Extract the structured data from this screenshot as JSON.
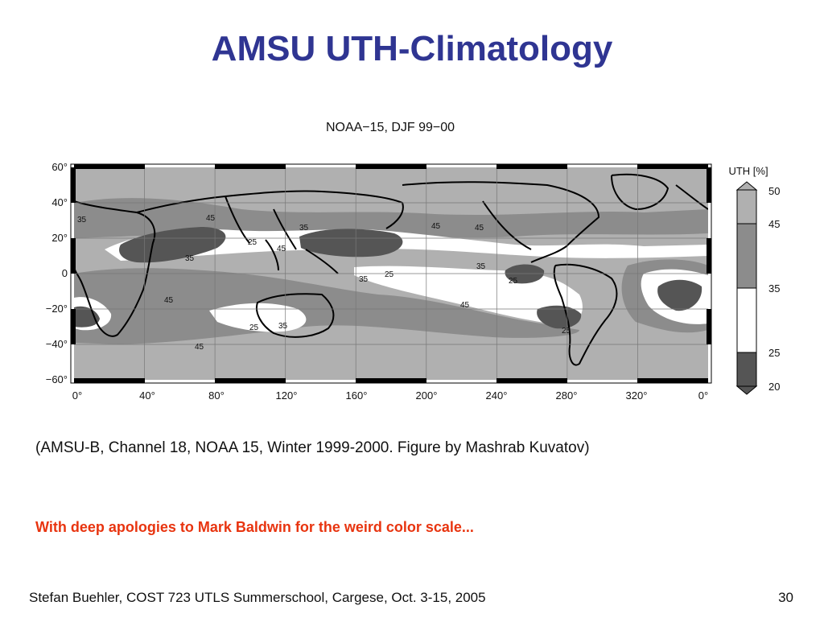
{
  "slide": {
    "title": "AMSU UTH-Climatology",
    "caption": "(AMSU-B, Channel 18, NOAA 15, Winter 1999-2000. Figure by Mashrab Kuvatov)",
    "apology": "With deep apologies to Mark Baldwin for the weird color scale...",
    "footer_left": "Stefan Buehler, COST 723 UTLS Summerschool, Cargese, Oct. 3-15, 2005",
    "page_number": "30"
  },
  "figure": {
    "title": "NOAA−15, DJF 99−00",
    "lat_labels": [
      "60°",
      "40°",
      "20°",
      "0",
      "−20°",
      "−40°",
      "−60°"
    ],
    "lon_labels": [
      "0°",
      "40°",
      "80°",
      "120°",
      "160°",
      "200°",
      "240°",
      "280°",
      "320°",
      "0°"
    ],
    "contour_labels": [
      "35",
      "45",
      "25"
    ],
    "colorbar": {
      "title": "UTH [%]",
      "levels": [
        "20",
        "25",
        "35",
        "45",
        "50"
      ],
      "colors": [
        "#555555",
        "#ffffff",
        "#8c8c8c",
        "#b0b0b0"
      ]
    },
    "colors": {
      "background_gray": "#b0b0b0",
      "dark_zone": "#555555",
      "moist_zone": "#8c8c8c",
      "dry_zone": "#ffffff",
      "coastline": "#000000"
    }
  }
}
